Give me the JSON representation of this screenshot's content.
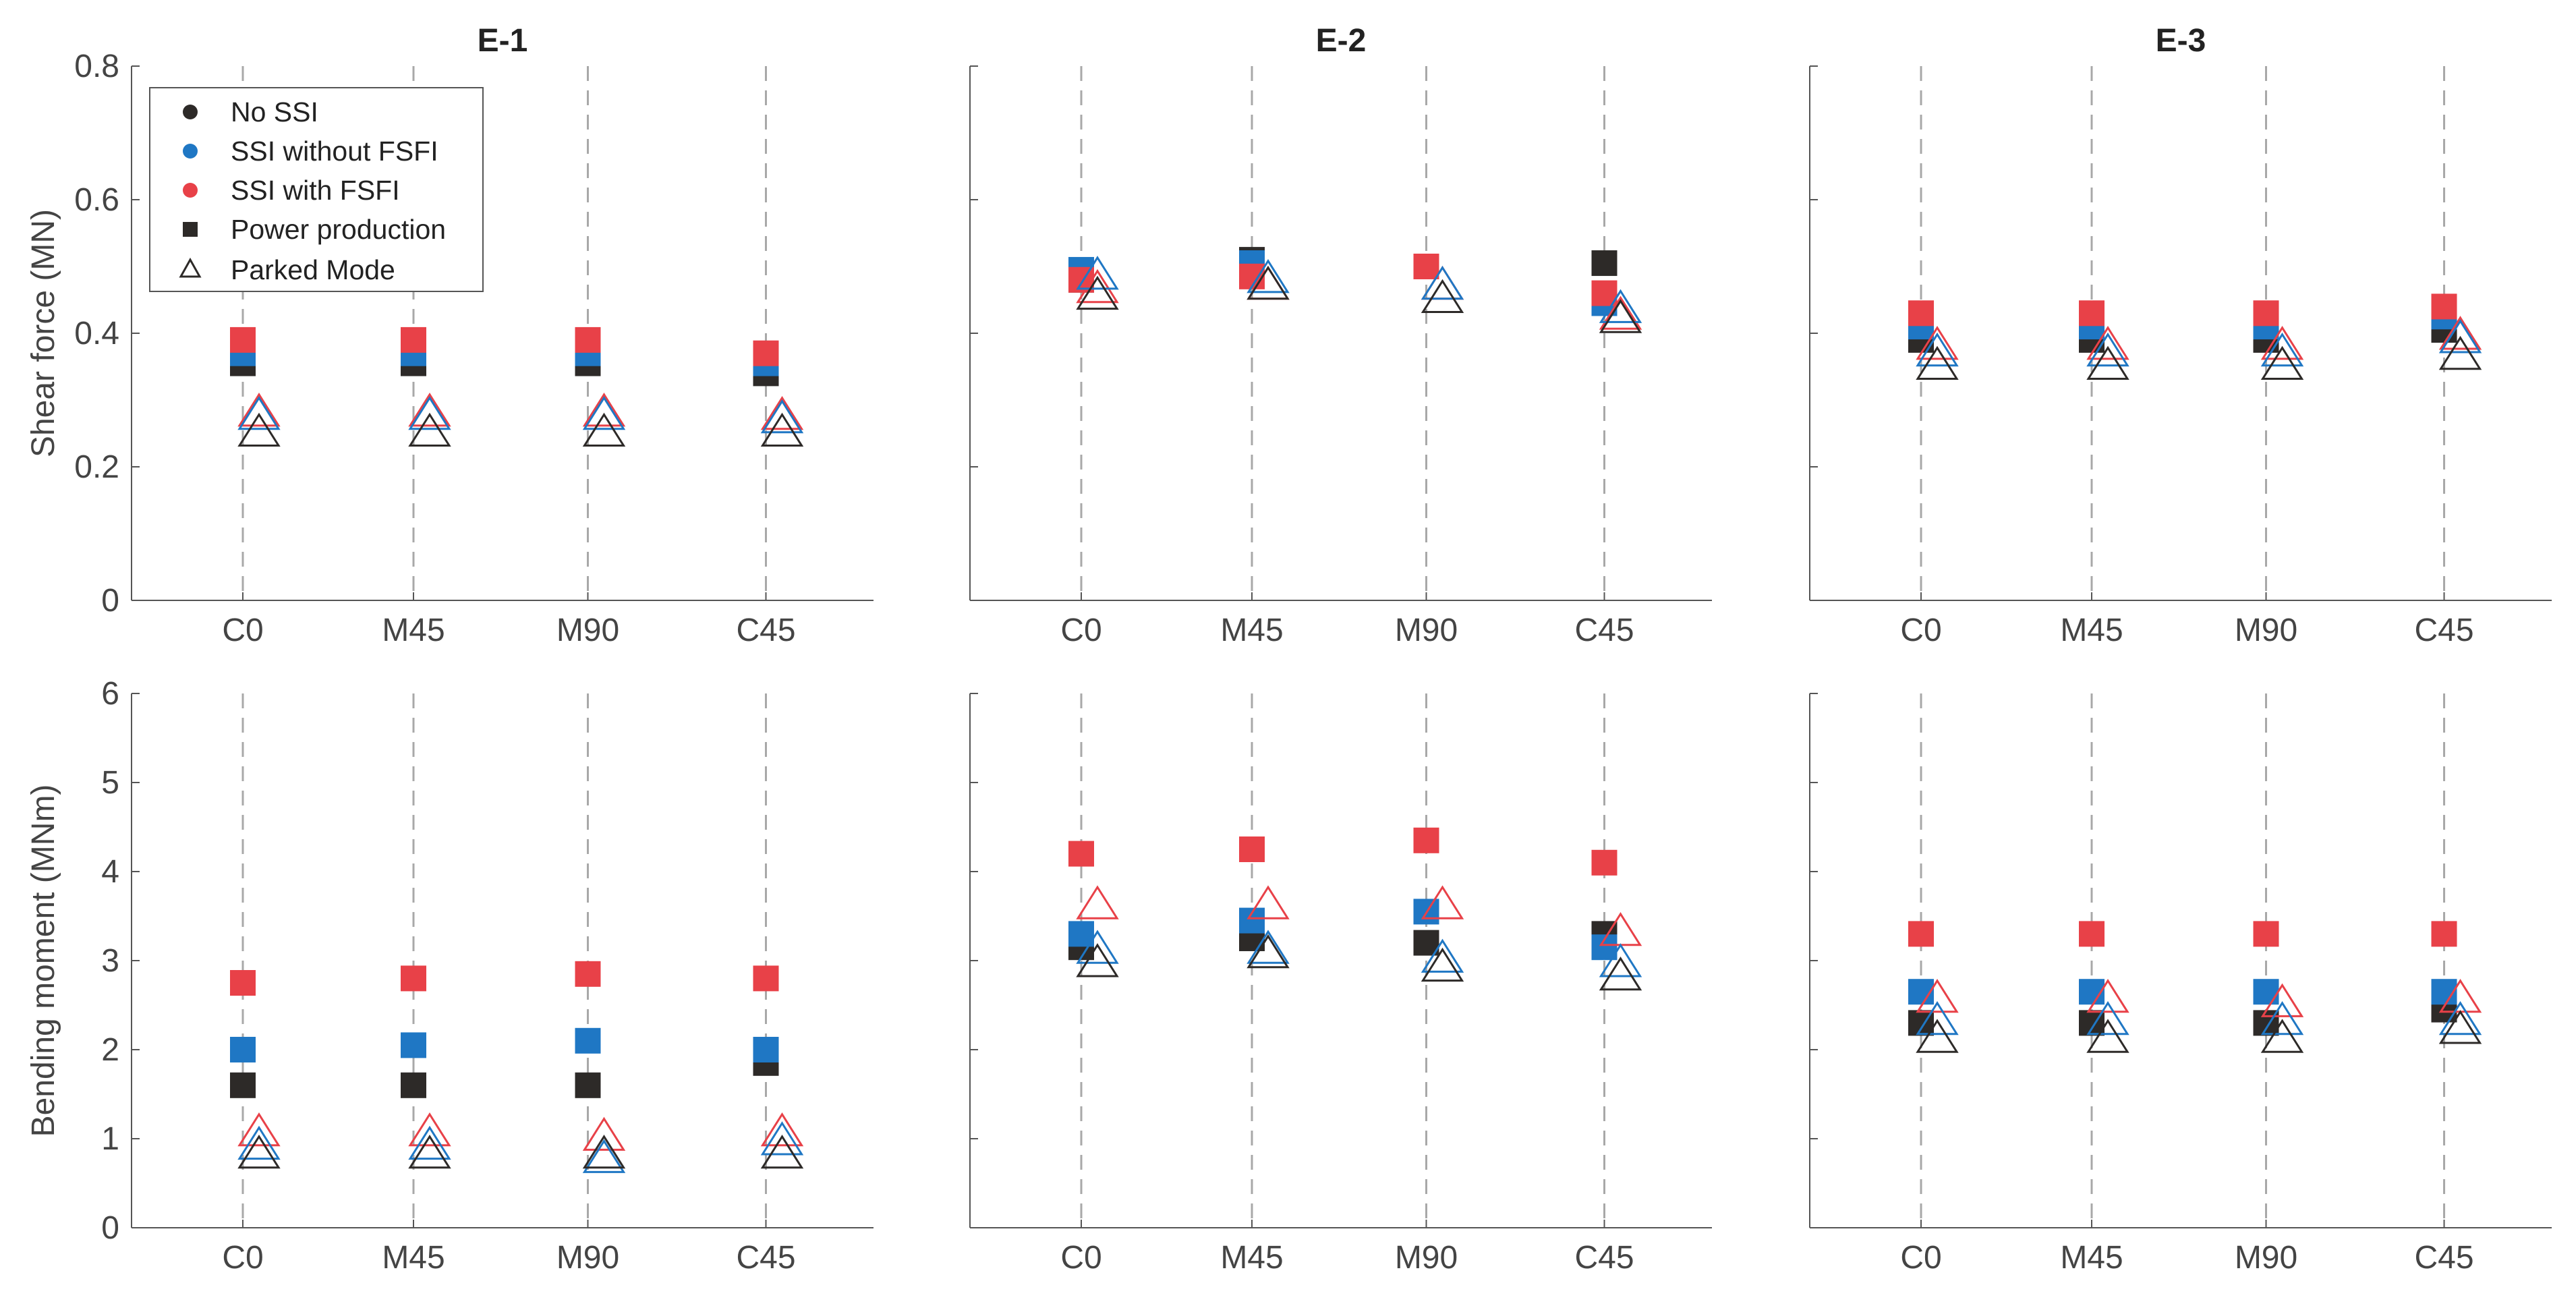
{
  "chart_data": {
    "type": "scatter",
    "categories": [
      "C0",
      "M45",
      "M90",
      "C45"
    ],
    "columns": [
      "E-1",
      "E-2",
      "E-3"
    ],
    "rows": [
      {
        "ylabel": "Shear force (MN)",
        "ylim": [
          0,
          0.8
        ],
        "yticks": [
          "0",
          "0.2",
          "0.4",
          "0.6",
          "0.8"
        ]
      },
      {
        "ylabel": "Bending moment (MNm)",
        "ylim": [
          0,
          6
        ],
        "yticks": [
          "0",
          "1",
          "2",
          "3",
          "4",
          "5",
          "6"
        ]
      }
    ],
    "colors": {
      "no_ssi": "#2d2a28",
      "ssi_without_fsfi": "#1f77c4",
      "ssi_with_fsfi": "#e84148"
    },
    "legend": {
      "position": "top-left",
      "entries": [
        {
          "label": "No SSI",
          "marker": "dot",
          "color": "#2d2a28"
        },
        {
          "label": "SSI without FSFI",
          "marker": "dot",
          "color": "#1f77c4"
        },
        {
          "label": "SSI with FSFI",
          "marker": "dot",
          "color": "#e84148"
        },
        {
          "label": "Power production",
          "marker": "square",
          "color": "#2d2a28"
        },
        {
          "label": "Parked Mode",
          "marker": "triangle",
          "color": "#2d2a28"
        }
      ]
    },
    "panels": [
      {
        "title": "E-1",
        "row": 0,
        "col": 0,
        "series": {
          "power_production": {
            "no_ssi": [
              0.355,
              0.355,
              0.355,
              0.34
            ],
            "ssi_without_fsfi": [
              0.37,
              0.37,
              0.37,
              0.355
            ],
            "ssi_with_fsfi": [
              0.39,
              0.39,
              0.39,
              0.37
            ]
          },
          "parked_mode": {
            "no_ssi": [
              0.255,
              0.255,
              0.255,
              0.255
            ],
            "ssi_without_fsfi": [
              0.28,
              0.28,
              0.28,
              0.275
            ],
            "ssi_with_fsfi": [
              0.285,
              0.285,
              0.285,
              0.28
            ]
          }
        }
      },
      {
        "title": "E-2",
        "row": 0,
        "col": 1,
        "series": {
          "power_production": {
            "no_ssi": [
              0.48,
              0.51,
              0.5,
              0.505
            ],
            "ssi_without_fsfi": [
              0.495,
              0.505,
              0.5,
              0.445
            ],
            "ssi_with_fsfi": [
              0.48,
              0.485,
              0.5,
              0.46
            ]
          },
          "parked_mode": {
            "no_ssi": [
              0.46,
              0.475,
              0.455,
              0.425
            ],
            "ssi_without_fsfi": [
              0.49,
              0.485,
              0.475,
              0.44
            ],
            "ssi_with_fsfi": [
              0.47,
              0.475,
              0.475,
              0.43
            ]
          }
        }
      },
      {
        "title": "E-3",
        "row": 0,
        "col": 2,
        "series": {
          "power_production": {
            "no_ssi": [
              0.39,
              0.39,
              0.39,
              0.405
            ],
            "ssi_without_fsfi": [
              0.41,
              0.41,
              0.41,
              0.425
            ],
            "ssi_with_fsfi": [
              0.43,
              0.43,
              0.43,
              0.44
            ]
          },
          "parked_mode": {
            "no_ssi": [
              0.355,
              0.355,
              0.355,
              0.37
            ],
            "ssi_without_fsfi": [
              0.375,
              0.375,
              0.375,
              0.395
            ],
            "ssi_with_fsfi": [
              0.385,
              0.385,
              0.385,
              0.4
            ]
          }
        }
      },
      {
        "title": "",
        "row": 1,
        "col": 0,
        "series": {
          "power_production": {
            "no_ssi": [
              1.6,
              1.6,
              1.6,
              1.85
            ],
            "ssi_without_fsfi": [
              2.0,
              2.05,
              2.1,
              2.0
            ],
            "ssi_with_fsfi": [
              2.75,
              2.8,
              2.85,
              2.8
            ]
          },
          "parked_mode": {
            "no_ssi": [
              0.85,
              0.85,
              0.85,
              0.85
            ],
            "ssi_without_fsfi": [
              0.95,
              0.95,
              0.8,
              1.0
            ],
            "ssi_with_fsfi": [
              1.1,
              1.1,
              1.05,
              1.1
            ]
          }
        }
      },
      {
        "title": "",
        "row": 1,
        "col": 1,
        "series": {
          "power_production": {
            "no_ssi": [
              3.15,
              3.25,
              3.2,
              3.3
            ],
            "ssi_without_fsfi": [
              3.3,
              3.45,
              3.55,
              3.15
            ],
            "ssi_with_fsfi": [
              4.2,
              4.25,
              4.35,
              4.1
            ]
          },
          "parked_mode": {
            "no_ssi": [
              3.0,
              3.1,
              2.95,
              2.85
            ],
            "ssi_without_fsfi": [
              3.15,
              3.15,
              3.05,
              3.0
            ],
            "ssi_with_fsfi": [
              3.65,
              3.65,
              3.65,
              3.35
            ]
          }
        }
      },
      {
        "title": "",
        "row": 1,
        "col": 2,
        "series": {
          "power_production": {
            "no_ssi": [
              2.3,
              2.3,
              2.3,
              2.45
            ],
            "ssi_without_fsfi": [
              2.65,
              2.65,
              2.65,
              2.65
            ],
            "ssi_with_fsfi": [
              3.3,
              3.3,
              3.3,
              3.3
            ]
          },
          "parked_mode": {
            "no_ssi": [
              2.15,
              2.15,
              2.15,
              2.25
            ],
            "ssi_without_fsfi": [
              2.35,
              2.35,
              2.35,
              2.35
            ],
            "ssi_with_fsfi": [
              2.6,
              2.6,
              2.55,
              2.6
            ]
          }
        }
      }
    ]
  }
}
